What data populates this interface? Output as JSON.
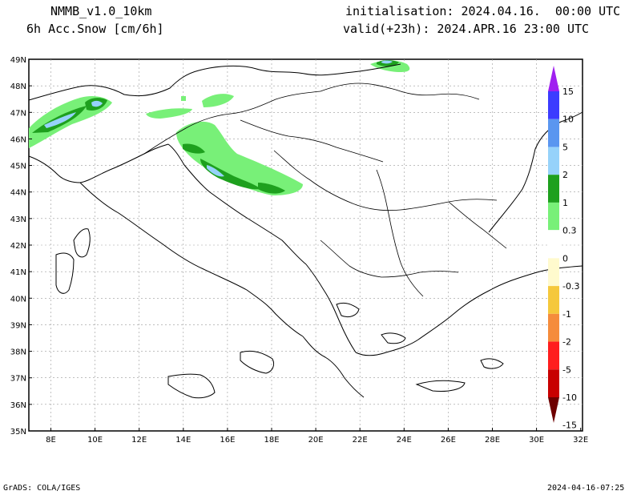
{
  "header": {
    "model": "NMMB_v1.0_10km",
    "field": "6h Acc.Snow [cm/6h]",
    "initialisation": "initialisation: 2024.04.16.  00:00 UTC",
    "valid": "valid(+23h): 2024.APR.16 23:00 UTC"
  },
  "footer": {
    "credit": "GrADS: COLA/IGES",
    "timestamp": "2024-04-16-07:25"
  },
  "axes": {
    "lat_labels": [
      "49N",
      "48N",
      "47N",
      "46N",
      "45N",
      "44N",
      "43N",
      "42N",
      "41N",
      "40N",
      "39N",
      "38N",
      "37N",
      "36N",
      "35N"
    ],
    "lon_labels": [
      "8E",
      "10E",
      "12E",
      "14E",
      "16E",
      "18E",
      "20E",
      "22E",
      "24E",
      "26E",
      "28E",
      "30E",
      "32E"
    ]
  },
  "colorbar": {
    "labels": [
      "15",
      "10",
      "5",
      "2",
      "1",
      "0.3",
      "0",
      "-0.3",
      "-1",
      "-2",
      "-5",
      "-10",
      "-15"
    ],
    "colors": [
      "#a020f0",
      "#3c3cff",
      "#5a96f0",
      "#96d2fa",
      "#1ea01e",
      "#78f078",
      "#ffffff",
      "#fffacd",
      "#f5c83c",
      "#f58c3c",
      "#ff1e1e",
      "#c80000",
      "#6e0000"
    ]
  }
}
